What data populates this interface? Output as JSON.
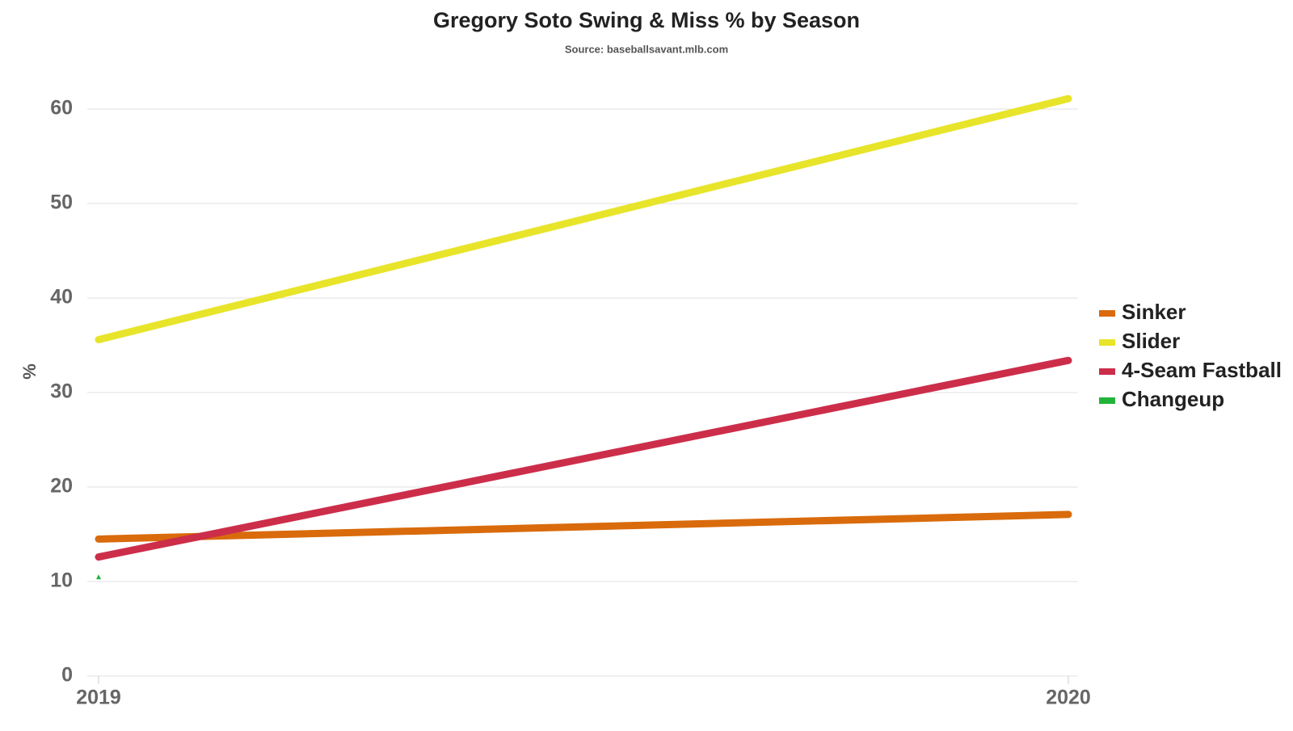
{
  "chart_data": {
    "type": "line",
    "title": "Gregory Soto Swing & Miss % by Season",
    "subtitle": "Source: baseballsavant.mlb.com",
    "y_label": "%",
    "x": [
      2019,
      2020
    ],
    "xlim": [
      2019,
      2020
    ],
    "xticks": [
      2019,
      2020
    ],
    "ylim": [
      0,
      62
    ],
    "yticks": [
      0,
      10,
      20,
      30,
      40,
      50,
      60
    ],
    "grid": true,
    "legend": "right",
    "series": [
      {
        "name": "Sinker",
        "color": "#d96b0c",
        "values": [
          14.5,
          17.1
        ]
      },
      {
        "name": "Slider",
        "color": "#e8e42a",
        "values": [
          35.6,
          61.1
        ]
      },
      {
        "name": "4-Seam Fastball",
        "color": "#cc2e4a",
        "values": [
          12.6,
          33.4
        ]
      },
      {
        "name": "Changeup",
        "color": "#22b43a",
        "values": [
          10.5,
          null
        ]
      }
    ]
  }
}
